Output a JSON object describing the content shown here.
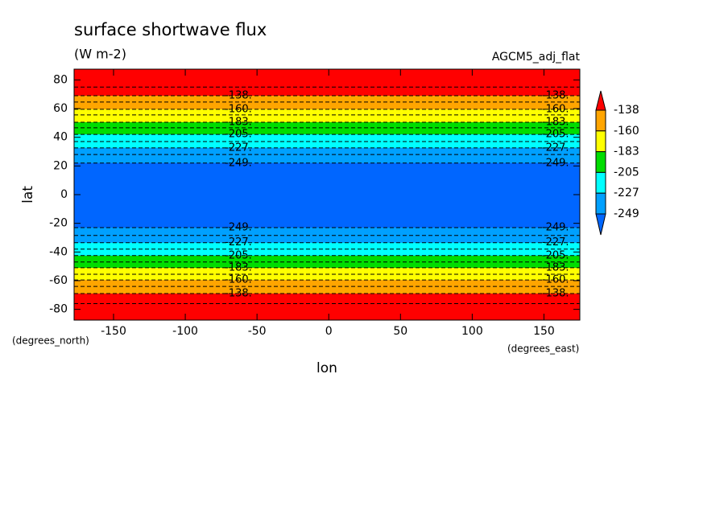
{
  "chart_data": {
    "type": "contour",
    "title": "surface shortwave flux",
    "subtitle": "(W m-2)",
    "dataset": "AGCM5_adj_flat",
    "x_label": "lon",
    "y_label": "lat",
    "x_units": "(degrees_east)",
    "y_units": "(degrees_north)",
    "xlim": [
      -177.5,
      175
    ],
    "ylim": [
      -87.5,
      87.5
    ],
    "xticks": [
      -150,
      -100,
      -50,
      0,
      50,
      100,
      150
    ],
    "yticks": [
      -80,
      -60,
      -40,
      -20,
      0,
      20,
      40,
      60,
      80
    ],
    "fill_levels": [
      -138,
      -160,
      -183,
      -205,
      -227,
      -249
    ],
    "colors": [
      "#ff0000",
      "#ffa500",
      "#ffff00",
      "#00dd00",
      "#00ffff",
      "#00a0ff",
      "#0066ff"
    ],
    "contours": [
      {
        "level": -127,
        "lat": [
          -76,
          75
        ]
      },
      {
        "level": -138,
        "label": "-138.",
        "lat": [
          -69,
          69
        ]
      },
      {
        "level": -149,
        "lat": [
          -64,
          64.6
        ]
      },
      {
        "level": -160,
        "label": "-160.",
        "lat": [
          -59.5,
          59.5
        ]
      },
      {
        "level": -171,
        "lat": [
          -55.5,
          55.6
        ]
      },
      {
        "level": -183,
        "label": "-183.",
        "lat": [
          -51,
          50.5
        ]
      },
      {
        "level": -194,
        "lat": [
          -47,
          46.6
        ]
      },
      {
        "level": -205,
        "label": "-205.",
        "lat": [
          -42.5,
          42
        ]
      },
      {
        "level": -216,
        "lat": [
          -38,
          37
        ]
      },
      {
        "level": -227,
        "label": "-227.",
        "lat": [
          -33.5,
          32.6
        ]
      },
      {
        "level": -238,
        "lat": [
          -28.5,
          28
        ]
      },
      {
        "level": -249,
        "label": "-249.",
        "lat": [
          -23,
          22
        ]
      }
    ]
  }
}
